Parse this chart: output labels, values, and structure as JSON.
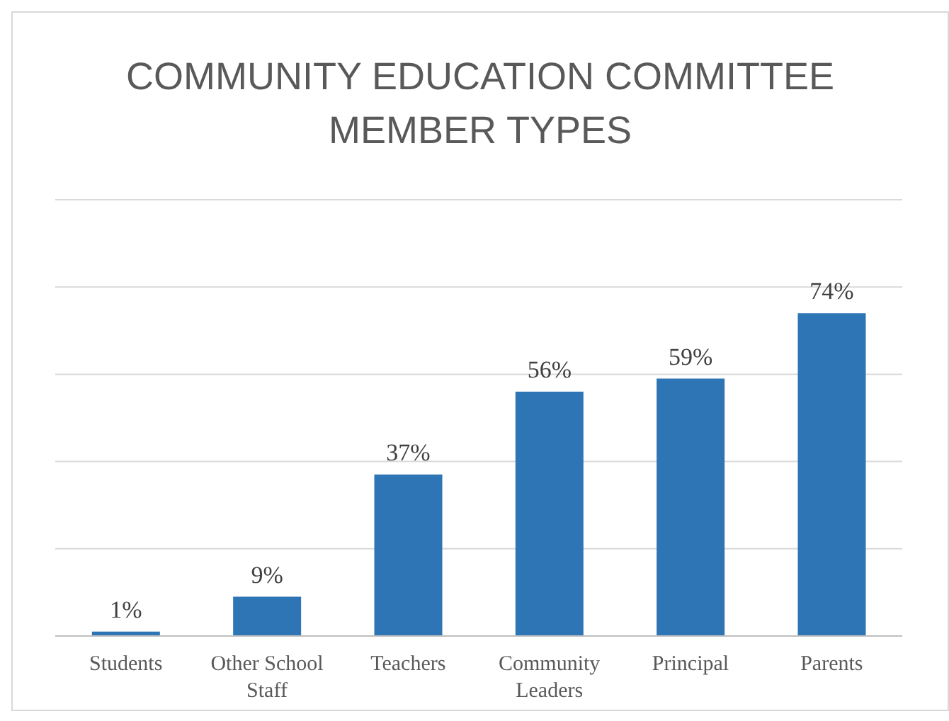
{
  "chart_data": {
    "type": "bar",
    "title": "COMMUNITY EDUCATION COMMITTEE MEMBER TYPES",
    "categories": [
      "Students",
      "Other School Staff",
      "Teachers",
      "Community Leaders",
      "Principal",
      "Parents"
    ],
    "values": [
      1,
      9,
      37,
      56,
      59,
      74
    ],
    "color": "#2e75b6",
    "value_labels": [
      "1%",
      "9%",
      "37%",
      "56%",
      "59%",
      "74%"
    ],
    "ylim": [
      0,
      100
    ],
    "tick_labels": "x",
    "grid": "y"
  }
}
